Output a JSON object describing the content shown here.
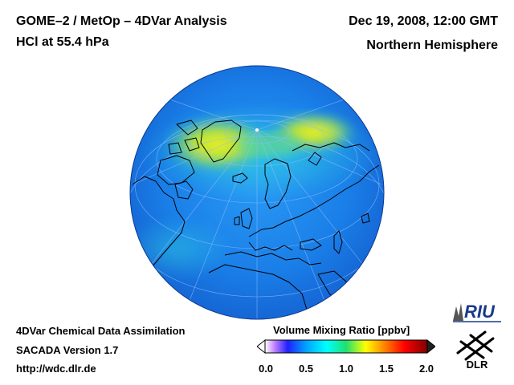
{
  "header": {
    "title_line1": "GOME–2 / MetOp – 4DVar Analysis",
    "title_line2": "HCl at 55.4 hPa",
    "date": "Dec 19, 2008, 12:00 GMT",
    "region": "Northern Hemisphere"
  },
  "footer": {
    "line1": "4DVar Chemical Data Assimilation",
    "line2": "SACADA Version 1.7",
    "url": "http://wdc.dlr.de"
  },
  "colorbar": {
    "title": "Volume Mixing Ratio [ppbv]",
    "ticks": [
      "0.0",
      "0.5",
      "1.0",
      "1.5",
      "2.0"
    ],
    "colors": [
      "#ffffff",
      "#c080ff",
      "#2020ff",
      "#00a0ff",
      "#00ffff",
      "#20e070",
      "#ffff00",
      "#ff8000",
      "#ff0000",
      "#800000",
      "#202020"
    ]
  },
  "logos": {
    "riu": "RIU",
    "dlr": "DLR"
  },
  "map": {
    "colors": {
      "ocean_base": "#1e78e6",
      "high_vmr": "#e0ee30",
      "mid_vmr": "#40d0a0"
    }
  }
}
